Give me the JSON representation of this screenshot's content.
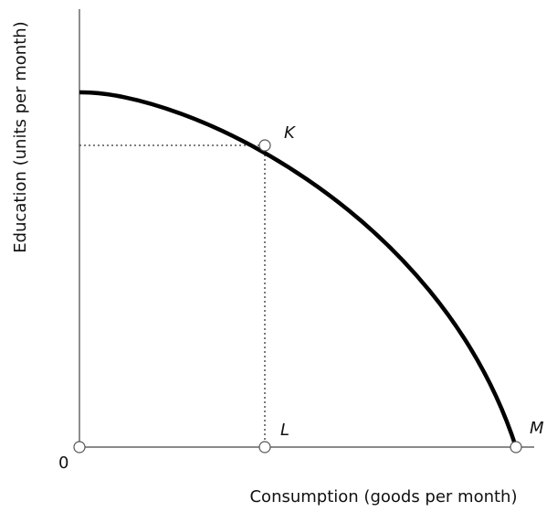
{
  "diagram": {
    "y_axis_label": "Education (units per month)",
    "x_axis_label": "Consumption (goods per month)",
    "origin_label": "0",
    "points": [
      {
        "label": "K"
      },
      {
        "label": "L"
      },
      {
        "label": "M"
      }
    ]
  }
}
